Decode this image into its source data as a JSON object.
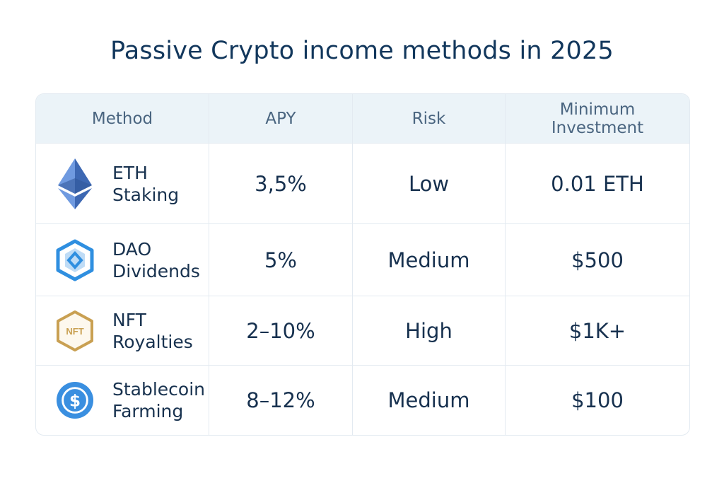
{
  "title": "Passive Crypto income methods in 2025",
  "table": {
    "headers": [
      "Method",
      "APY",
      "Risk",
      "Minimum Investment"
    ],
    "rows": [
      {
        "icon": "ethereum-icon",
        "method_line1": "ETH",
        "method_line2": "Staking",
        "apy": "3,5%",
        "risk": "Low",
        "min": "0.01 ETH"
      },
      {
        "icon": "dao-hexagon-icon",
        "method_line1": "DAO",
        "method_line2": "Dividends",
        "apy": "5%",
        "risk": "Medium",
        "min": "$500"
      },
      {
        "icon": "nft-hexagon-icon",
        "icon_text": "NFT",
        "method_line1": "NFT",
        "method_line2": "Royalties",
        "apy": "2–10%",
        "risk": "High",
        "min": "$1K+"
      },
      {
        "icon": "dollar-coin-icon",
        "method_line1": "Stablecoin",
        "method_line2": "Farming",
        "apy": "8–12%",
        "risk": "Medium",
        "min": "$100"
      }
    ]
  },
  "colors": {
    "title": "#12375c",
    "header_bg": "#ebf3f8",
    "ethereum": "#4a78c9",
    "dao": "#2f8fe0",
    "nft": "#c9a052",
    "stablecoin": "#2f8fe0"
  }
}
